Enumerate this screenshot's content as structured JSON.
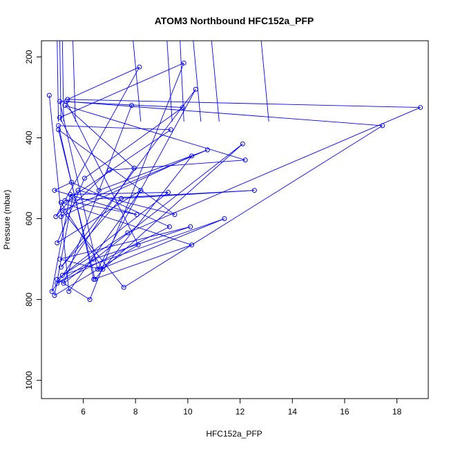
{
  "chart_data": {
    "type": "line",
    "title": "ATOM3 Northbound HFC152a_PFP",
    "xlabel": "HFC152a_PFP",
    "ylabel": "Pressure (mbar)",
    "xlim": [
      4.4,
      19.2
    ],
    "ylim": [
      1045,
      160
    ],
    "y_inverted": true,
    "xticks": [
      6,
      8,
      10,
      12,
      14,
      16,
      18
    ],
    "yticks": [
      200,
      400,
      600,
      800,
      1000
    ],
    "grid": false,
    "series": [
      {
        "color": "#0000ff",
        "marker": "open-circle",
        "points": [
          [
            4.7,
            295
          ],
          [
            4.8,
            780
          ],
          [
            4.9,
            530
          ],
          [
            4.9,
            790
          ],
          [
            4.95,
            595
          ],
          [
            5.0,
            660
          ],
          [
            5.0,
            750
          ],
          [
            5.0,
            760
          ],
          [
            5.05,
            370
          ],
          [
            5.05,
            380
          ],
          [
            5.1,
            310
          ],
          [
            5.1,
            350
          ],
          [
            5.1,
            700
          ],
          [
            5.15,
            560
          ],
          [
            5.15,
            595
          ],
          [
            5.15,
            720
          ],
          [
            5.2,
            580
          ],
          [
            5.2,
            740
          ],
          [
            5.25,
            760
          ],
          [
            5.3,
            320
          ],
          [
            5.3,
            555
          ],
          [
            5.35,
            310
          ],
          [
            5.4,
            305
          ],
          [
            5.45,
            780
          ],
          [
            5.5,
            540
          ],
          [
            5.55,
            510
          ],
          [
            5.6,
            545
          ],
          [
            5.8,
            530
          ],
          [
            6.05,
            500
          ],
          [
            6.25,
            800
          ],
          [
            6.4,
            700
          ],
          [
            6.4,
            750
          ],
          [
            6.45,
            750
          ],
          [
            6.55,
            725
          ],
          [
            6.6,
            530
          ],
          [
            6.65,
            725
          ],
          [
            6.75,
            725
          ],
          [
            7.0,
            480
          ],
          [
            7.45,
            550
          ],
          [
            7.55,
            770
          ],
          [
            7.7,
            635
          ],
          [
            7.85,
            320
          ],
          [
            7.95,
            475
          ],
          [
            8.05,
            590
          ],
          [
            8.1,
            665
          ],
          [
            8.15,
            225
          ],
          [
            8.2,
            530
          ],
          [
            9.25,
            535
          ],
          [
            9.3,
            620
          ],
          [
            9.35,
            380
          ],
          [
            9.5,
            590
          ],
          [
            9.8,
            325
          ],
          [
            9.85,
            215
          ],
          [
            10.1,
            620
          ],
          [
            10.15,
            665
          ],
          [
            10.15,
            445
          ],
          [
            10.3,
            280
          ],
          [
            10.75,
            430
          ],
          [
            11.4,
            600
          ],
          [
            12.1,
            415
          ],
          [
            12.2,
            455
          ],
          [
            12.55,
            530
          ],
          [
            17.45,
            370
          ],
          [
            18.9,
            325
          ]
        ]
      }
    ]
  }
}
